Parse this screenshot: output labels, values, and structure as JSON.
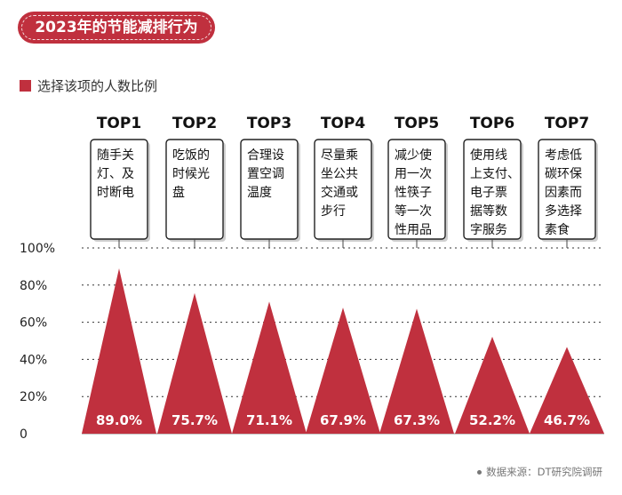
{
  "title": "2023年的节能减排行为",
  "legend_label": "选择该项的人数比例",
  "source": "数据来源：DT研究院调研",
  "colors": {
    "accent": "#c0303e",
    "grid": "#333333",
    "card_border": "#222222"
  },
  "chart_data": {
    "type": "bar",
    "bar_shape": "triangle",
    "title": "",
    "xlabel": "",
    "ylabel": "",
    "ylim": [
      0,
      100
    ],
    "yticks": [
      "0",
      "20%",
      "40%",
      "60%",
      "80%",
      "100%"
    ],
    "grid": true,
    "ranks": [
      "TOP1",
      "TOP2",
      "TOP3",
      "TOP4",
      "TOP5",
      "TOP6",
      "TOP7"
    ],
    "categories": [
      "随手关灯、及时断电",
      "吃饭的时候光盘",
      "合理设置空调温度",
      "尽量乘坐公共交通或步行",
      "减少使用一次性筷子等一次性用品",
      "使用线上支付、电子票据等数字服务",
      "考虑低碳环保因素而多选择素食"
    ],
    "category_lines": [
      [
        "随手关",
        "灯、及",
        "时断电"
      ],
      [
        "吃饭的",
        "时候光",
        "盘"
      ],
      [
        "合理设",
        "置空调",
        "温度"
      ],
      [
        "尽量乘",
        "坐公共",
        "交通或",
        "步行"
      ],
      [
        "减少使",
        "用一次",
        "性筷子",
        "等一次",
        "性用品"
      ],
      [
        "使用线",
        "上支付、",
        "电子票",
        "据等数",
        "字服务"
      ],
      [
        "考虑低",
        "碳环保",
        "因素而",
        "多选择",
        "素食"
      ]
    ],
    "values": [
      89.0,
      75.7,
      71.1,
      67.9,
      67.3,
      52.2,
      46.7
    ],
    "value_labels": [
      "89.0%",
      "75.7%",
      "71.1%",
      "67.9%",
      "67.3%",
      "52.2%",
      "46.7%"
    ]
  }
}
